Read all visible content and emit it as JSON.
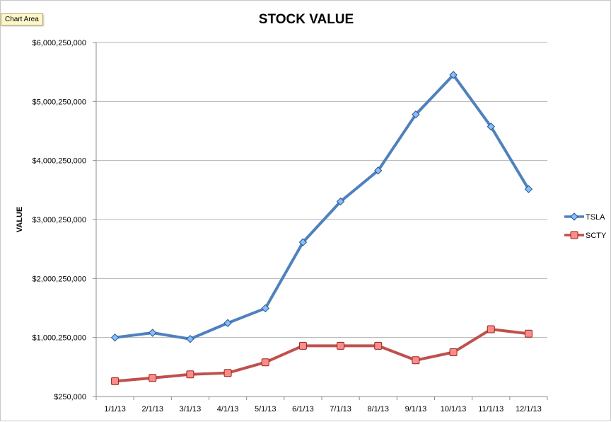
{
  "tooltip": "Chart Area",
  "chart_data": {
    "type": "line",
    "title": "STOCK VALUE",
    "xlabel": "",
    "ylabel": "VALUE",
    "categories": [
      "1/1/13",
      "2/1/13",
      "3/1/13",
      "4/1/13",
      "5/1/13",
      "6/1/13",
      "7/1/13",
      "8/1/13",
      "9/1/13",
      "10/1/13",
      "11/1/13",
      "12/1/13"
    ],
    "y_ticks": [
      {
        "value": 250000,
        "label": "$250,000"
      },
      {
        "value": 1000250000,
        "label": "$1,000,250,000"
      },
      {
        "value": 2000250000,
        "label": "$2,000,250,000"
      },
      {
        "value": 3000250000,
        "label": "$3,000,250,000"
      },
      {
        "value": 4000250000,
        "label": "$4,000,250,000"
      },
      {
        "value": 5000250000,
        "label": "$5,000,250,000"
      },
      {
        "value": 6000250000,
        "label": "$6,000,250,000"
      }
    ],
    "ylim": [
      250000,
      6000250000
    ],
    "grid": true,
    "legend_position": "right",
    "series": [
      {
        "name": "TSLA",
        "color": "#4f81bd",
        "marker": "diamond",
        "values": [
          1000000000,
          1080000000,
          975000000,
          1245000000,
          1495000000,
          2615000000,
          3305000000,
          3830000000,
          4780000000,
          5450000000,
          4575000000,
          3515000000
        ]
      },
      {
        "name": "SCTY",
        "color": "#c0504d",
        "marker": "square",
        "values": [
          260000000,
          315000000,
          375000000,
          400000000,
          580000000,
          860000000,
          860000000,
          860000000,
          615000000,
          750000000,
          1140000000,
          1065000000
        ]
      }
    ]
  }
}
